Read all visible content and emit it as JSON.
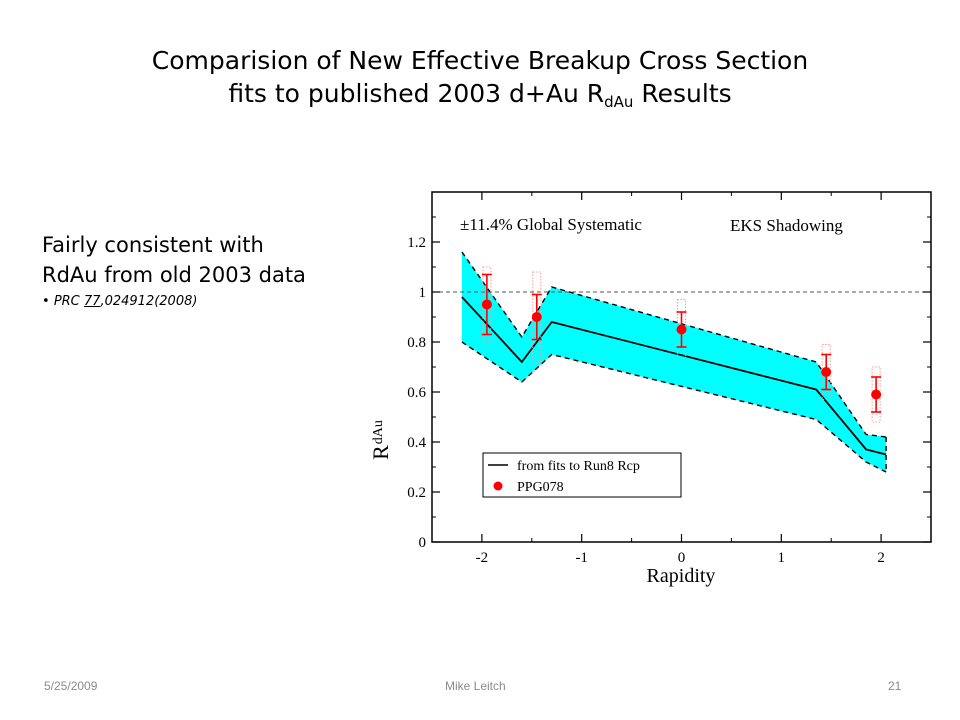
{
  "slide": {
    "title_line1": "Comparision of New Effective Breakup Cross Section",
    "title_line2_main": "fits to published 2003 d+Au R",
    "title_line2_sub": "dAu",
    "title_line2_tail": " Results",
    "side_line1": "Fairly consistent with",
    "side_line2": "RdAu from old 2003 data",
    "ref_prefix": "PRC ",
    "ref_volume": "77",
    "ref_tail": ",024912(2008)",
    "footer_date": "5/25/2009",
    "footer_author": "Mike Leitch",
    "footer_page": "21"
  },
  "chart_data": {
    "type": "scatter",
    "xlabel": "Rapidity",
    "ylabel_main": "R",
    "ylabel_sub": "dAu",
    "xlim": [
      -2.5,
      2.5
    ],
    "ylim": [
      0,
      1.4
    ],
    "xticks": [
      "-2",
      "-1",
      "0",
      "1",
      "2"
    ],
    "yticks": [
      "0",
      "0.2",
      "0.4",
      "0.6",
      "0.8",
      "1",
      "1.2"
    ],
    "reference_line": 1.0,
    "annotations": [
      "±11.4% Global Systematic",
      "EKS Shadowing"
    ],
    "legend": {
      "position": "bottom-left",
      "entries": [
        "from fits to Run8 Rcp",
        "PPG078"
      ]
    },
    "colors": {
      "band": "#00ffff",
      "points": "#ff0000",
      "syst": "#ff9a9a",
      "line": "#000000"
    },
    "fit_line": {
      "x": [
        -2.2,
        -1.6,
        -1.3,
        1.35,
        1.85,
        2.05
      ],
      "y": [
        0.98,
        0.72,
        0.88,
        0.61,
        0.37,
        0.35
      ]
    },
    "band_upper": {
      "x": [
        -2.2,
        -1.6,
        -1.3,
        1.35,
        1.85,
        2.05
      ],
      "y": [
        1.16,
        0.82,
        1.02,
        0.72,
        0.43,
        0.42
      ]
    },
    "band_lower": {
      "x": [
        -2.2,
        -1.6,
        -1.3,
        1.35,
        1.85,
        2.05
      ],
      "y": [
        0.8,
        0.64,
        0.75,
        0.49,
        0.32,
        0.28
      ]
    },
    "points": [
      {
        "x": -1.95,
        "y": 0.95,
        "err": 0.12,
        "syst": 0.15
      },
      {
        "x": -1.45,
        "y": 0.9,
        "err": 0.09,
        "syst": 0.18
      },
      {
        "x": 0.0,
        "y": 0.85,
        "err": 0.07,
        "syst": 0.12
      },
      {
        "x": 1.45,
        "y": 0.68,
        "err": 0.07,
        "syst": 0.11
      },
      {
        "x": 1.95,
        "y": 0.59,
        "err": 0.07,
        "syst": 0.11
      }
    ]
  }
}
